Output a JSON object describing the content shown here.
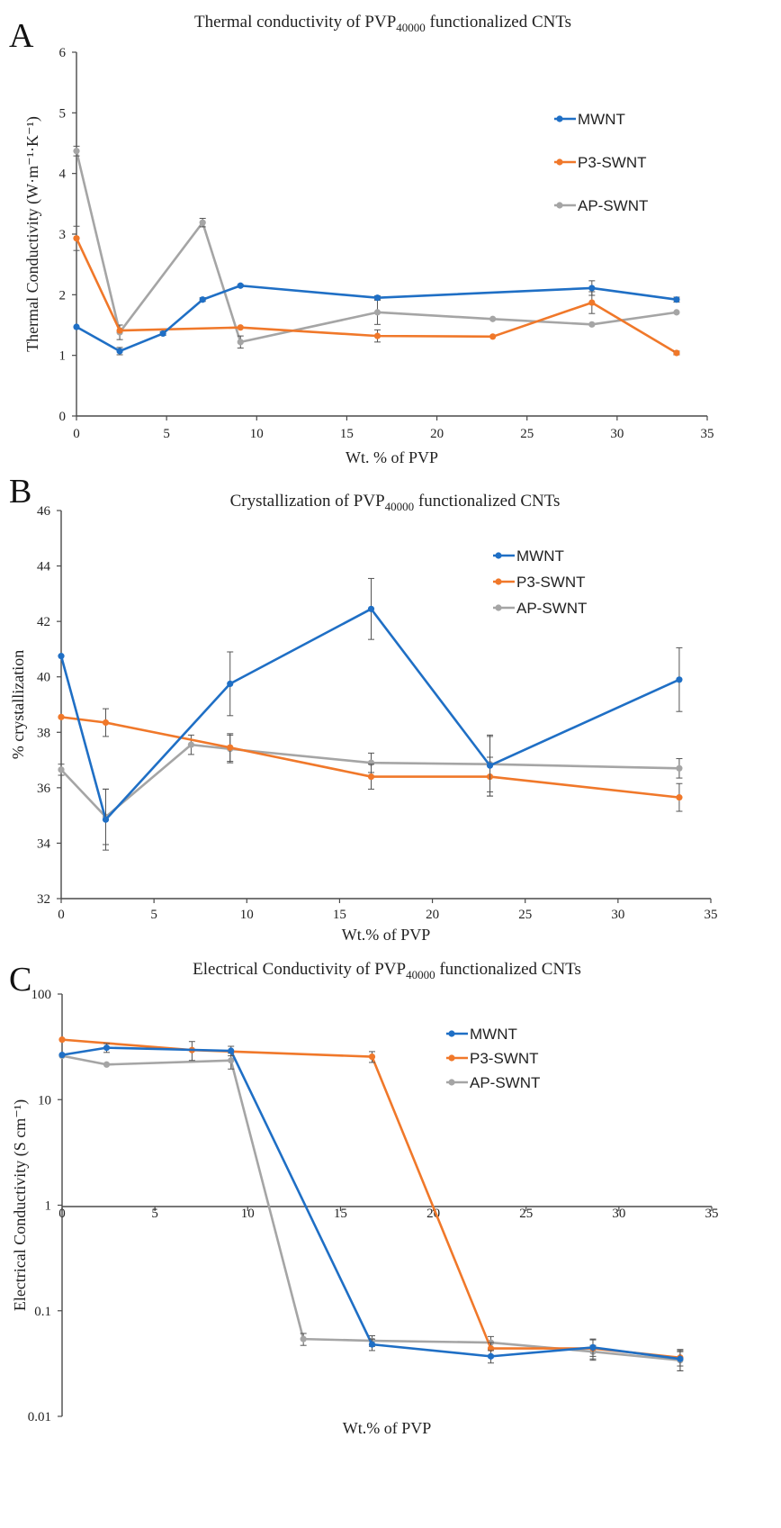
{
  "chart_data": [
    {
      "type": "line",
      "panel_label": "A",
      "title": "Thermal conductivity of PVP40000 functionalized CNTs",
      "title_parts": {
        "pre": "Thermal conductivity of PVP",
        "sub": "40000",
        "post": " functionalized CNTs"
      },
      "xlabel": "Wt. % of PVP",
      "ylabel": "Thermal Conductivity (W·m⁻¹·K⁻¹)",
      "xlim": [
        0,
        35
      ],
      "ylim": [
        0,
        6
      ],
      "xticks": [
        0,
        5,
        10,
        15,
        20,
        25,
        30,
        35
      ],
      "yticks": [
        0,
        1,
        2,
        3,
        4,
        5,
        6
      ],
      "yscale": "linear",
      "grid": false,
      "legend_position": "right",
      "series": [
        {
          "name": "MWNT",
          "color": "#1f6fc5",
          "points": [
            [
              0,
              1.47,
              0
            ],
            [
              2.4,
              1.07,
              0.06
            ],
            [
              4.8,
              1.36,
              0.03
            ],
            [
              7.0,
              1.92,
              0.03
            ],
            [
              9.1,
              2.15,
              0.02
            ],
            [
              16.7,
              1.95,
              0.03
            ],
            [
              28.6,
              2.11,
              0.12
            ],
            [
              33.3,
              1.92,
              0.04
            ]
          ]
        },
        {
          "name": "P3-SWNT",
          "color": "#f0782a",
          "points": [
            [
              0,
              2.93,
              0.2
            ],
            [
              2.4,
              1.41,
              0
            ],
            [
              9.1,
              1.46,
              0
            ],
            [
              16.7,
              1.32,
              0.1
            ],
            [
              23.1,
              1.31,
              0
            ],
            [
              28.6,
              1.87,
              0.18
            ],
            [
              33.3,
              1.04,
              0.03
            ]
          ]
        },
        {
          "name": "AP-SWNT",
          "color": "#a5a5a5",
          "points": [
            [
              0,
              4.37,
              0.08
            ],
            [
              2.4,
              1.38,
              0.12
            ],
            [
              7.0,
              3.19,
              0.07
            ],
            [
              9.1,
              1.22,
              0.1
            ],
            [
              16.7,
              1.71,
              0.2
            ],
            [
              23.1,
              1.6,
              0
            ],
            [
              28.6,
              1.51,
              0
            ],
            [
              33.3,
              1.71,
              0
            ]
          ]
        }
      ]
    },
    {
      "type": "line",
      "panel_label": "B",
      "title": "Crystallization of PVP40000 functionalized CNTs",
      "title_parts": {
        "pre": "Crystallization of PVP",
        "sub": "40000",
        "post": " functionalized CNTs"
      },
      "xlabel": "Wt.% of PVP",
      "ylabel": "% crystallization",
      "xlim": [
        0,
        35
      ],
      "ylim": [
        32,
        46
      ],
      "xticks": [
        0,
        5,
        10,
        15,
        20,
        25,
        30,
        35
      ],
      "yticks": [
        32,
        34,
        36,
        38,
        40,
        42,
        44,
        46
      ],
      "yscale": "linear",
      "grid": false,
      "legend_position": "top-right",
      "series": [
        {
          "name": "MWNT",
          "color": "#1f6fc5",
          "points": [
            [
              0,
              40.75,
              0
            ],
            [
              2.4,
              34.85,
              1.1
            ],
            [
              9.1,
              39.75,
              1.15
            ],
            [
              16.7,
              42.45,
              1.1
            ],
            [
              23.1,
              36.8,
              1.1
            ],
            [
              33.3,
              39.9,
              1.15
            ]
          ]
        },
        {
          "name": "P3-SWNT",
          "color": "#f0782a",
          "points": [
            [
              0,
              38.55,
              0
            ],
            [
              2.4,
              38.35,
              0.5
            ],
            [
              9.1,
              37.45,
              0.5
            ],
            [
              16.7,
              36.4,
              0.45
            ],
            [
              23.1,
              36.4,
              0.7
            ],
            [
              33.3,
              35.65,
              0.5
            ]
          ]
        },
        {
          "name": "AP-SWNT",
          "color": "#a5a5a5",
          "points": [
            [
              0,
              36.65,
              0.2
            ],
            [
              2.4,
              34.95,
              1.0
            ],
            [
              7.0,
              37.55,
              0.35
            ],
            [
              9.1,
              37.4,
              0.5
            ],
            [
              16.7,
              36.9,
              0.35
            ],
            [
              23.1,
              36.85,
              1.0
            ],
            [
              33.3,
              36.7,
              0.35
            ]
          ]
        }
      ]
    },
    {
      "type": "line",
      "panel_label": "C",
      "title": "Electrical Conductivity of PVP40000 functionalized CNTs",
      "title_parts": {
        "pre": "Electrical Conductivity of PVP",
        "sub": "40000",
        "post": " functionalized CNTs"
      },
      "xlabel": "Wt.% of PVP",
      "ylabel": "Electrical Conductivity (S cm⁻¹)",
      "xlim": [
        0,
        35
      ],
      "ylim": [
        0.01,
        100
      ],
      "xticks": [
        0,
        5,
        10,
        15,
        20,
        25,
        30,
        35
      ],
      "yticks": [
        0.01,
        0.1,
        1,
        10,
        100
      ],
      "ytick_labels": [
        "0.01",
        "0.1",
        "1",
        "10",
        "100"
      ],
      "yscale": "log",
      "x_axis_crosses_at": 1,
      "grid": false,
      "legend_position": "top-right",
      "series": [
        {
          "name": "MWNT",
          "color": "#1f6fc5",
          "points": [
            [
              0,
              26.5,
              0
            ],
            [
              2.4,
              31,
              3
            ],
            [
              9.1,
              29,
              3
            ],
            [
              16.7,
              0.048,
              0.006
            ],
            [
              23.1,
              0.037,
              0.005
            ],
            [
              28.6,
              0.045,
              0.008
            ],
            [
              33.3,
              0.035,
              0.008
            ]
          ]
        },
        {
          "name": "P3-SWNT",
          "color": "#f0782a",
          "points": [
            [
              0,
              37,
              0
            ],
            [
              7.0,
              29.5,
              6
            ],
            [
              16.7,
              25.5,
              3
            ],
            [
              23.1,
              0.044,
              0.006
            ],
            [
              28.6,
              0.044,
              0.01
            ],
            [
              33.3,
              0.036,
              0.006
            ]
          ]
        },
        {
          "name": "AP-SWNT",
          "color": "#a5a5a5",
          "points": [
            [
              0,
              26,
              0
            ],
            [
              2.4,
              21.5,
              0
            ],
            [
              9.1,
              23.5,
              4
            ],
            [
              13.0,
              0.054,
              0.007
            ],
            [
              16.7,
              0.052,
              0.006
            ],
            [
              23.1,
              0.05,
              0.007
            ],
            [
              28.6,
              0.041,
              0.006
            ],
            [
              33.3,
              0.034,
              0.007
            ]
          ]
        }
      ]
    }
  ]
}
